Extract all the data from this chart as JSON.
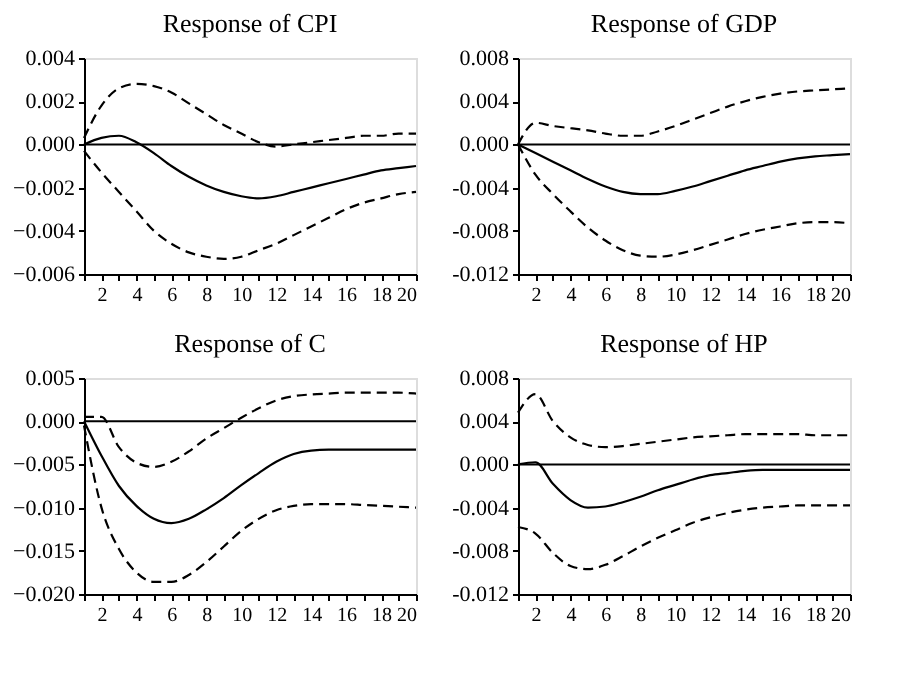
{
  "chart_data": [
    {
      "type": "line",
      "title": "Response of CPI",
      "x": [
        1,
        2,
        3,
        4,
        5,
        6,
        7,
        8,
        9,
        10,
        11,
        12,
        13,
        14,
        15,
        16,
        17,
        18,
        19,
        20
      ],
      "xlim": [
        1,
        20
      ],
      "xticks": [
        {
          "value": 1,
          "label": null
        },
        2,
        {
          "value": 3,
          "label": null
        },
        4,
        {
          "value": 5,
          "label": null
        },
        6,
        {
          "value": 7,
          "label": null
        },
        8,
        {
          "value": 9,
          "label": null
        },
        10,
        {
          "value": 11,
          "label": null
        },
        12,
        {
          "value": 13,
          "label": null
        },
        14,
        {
          "value": 15,
          "label": null
        },
        16,
        {
          "value": 17,
          "label": null
        },
        18,
        {
          "value": 19,
          "label": null
        },
        20
      ],
      "ylim": [
        -0.006,
        0.004
      ],
      "yticks": [
        {
          "value": -0.006,
          "label": "−0.006"
        },
        {
          "value": -0.004,
          "label": "−0.004"
        },
        {
          "value": -0.002,
          "label": "−0.002"
        },
        {
          "value": 0,
          "label": "0.000"
        },
        {
          "value": 0.002,
          "label": "0.002"
        },
        {
          "value": 0.004,
          "label": "0.004"
        }
      ],
      "grid": false,
      "legend": false,
      "ref_lines": [
        {
          "axis": "y",
          "value": 0,
          "color": "#000000",
          "line_style": "solid"
        }
      ],
      "series": [
        {
          "color": "#000000",
          "line_style": "solid",
          "values": [
            0,
            0.0003,
            0.0004,
            0.0001,
            -0.0004,
            -0.001,
            -0.0015,
            -0.0019,
            -0.0022,
            -0.0024,
            -0.0025,
            -0.0024,
            -0.0022,
            -0.002,
            -0.0018,
            -0.0016,
            -0.0014,
            -0.0012,
            -0.0011,
            -0.001
          ]
        },
        {
          "color": "#000000",
          "line_style": "dashed",
          "values": [
            0.0003,
            0.0018,
            0.0026,
            0.0028,
            0.0027,
            0.0024,
            0.0019,
            0.0014,
            0.0009,
            0.0005,
            0.0001,
            -0.0001,
            0,
            0.0001,
            0.0002,
            0.0003,
            0.0004,
            0.0004,
            0.0005,
            0.0005
          ]
        },
        {
          "color": "#000000",
          "line_style": "dashed",
          "values": [
            -0.0003,
            -0.0013,
            -0.0022,
            -0.0031,
            -0.004,
            -0.0046,
            -0.005,
            -0.0052,
            -0.0053,
            -0.0052,
            -0.0049,
            -0.0046,
            -0.0042,
            -0.0038,
            -0.0034,
            -0.003,
            -0.0027,
            -0.0025,
            -0.0023,
            -0.0022
          ]
        }
      ]
    },
    {
      "type": "line",
      "title": "Response of GDP",
      "x": [
        1,
        2,
        3,
        4,
        5,
        6,
        7,
        8,
        9,
        10,
        11,
        12,
        13,
        14,
        15,
        16,
        17,
        18,
        19,
        20
      ],
      "xlim": [
        1,
        20
      ],
      "xticks": [
        {
          "value": 1,
          "label": null
        },
        2,
        {
          "value": 3,
          "label": null
        },
        4,
        {
          "value": 5,
          "label": null
        },
        6,
        {
          "value": 7,
          "label": null
        },
        8,
        {
          "value": 9,
          "label": null
        },
        10,
        {
          "value": 11,
          "label": null
        },
        12,
        {
          "value": 13,
          "label": null
        },
        14,
        {
          "value": 15,
          "label": null
        },
        16,
        {
          "value": 17,
          "label": null
        },
        18,
        {
          "value": 19,
          "label": null
        },
        20
      ],
      "ylim": [
        -0.012,
        0.008
      ],
      "yticks": [
        {
          "value": -0.012,
          "label": "-0.012"
        },
        {
          "value": -0.008,
          "label": "-0.008"
        },
        {
          "value": -0.004,
          "label": "-0.004"
        },
        {
          "value": 0,
          "label": "0.000"
        },
        {
          "value": 0.004,
          "label": "0.004"
        },
        {
          "value": 0.008,
          "label": "0.008"
        }
      ],
      "grid": false,
      "legend": false,
      "ref_lines": [
        {
          "axis": "y",
          "value": 0,
          "color": "#000000",
          "line_style": "solid"
        }
      ],
      "series": [
        {
          "color": "#000000",
          "line_style": "solid",
          "values": [
            0,
            -0.0008,
            -0.0016,
            -0.0024,
            -0.0032,
            -0.0039,
            -0.0044,
            -0.0046,
            -0.0046,
            -0.0043,
            -0.0039,
            -0.0034,
            -0.0029,
            -0.0024,
            -0.002,
            -0.0016,
            -0.0013,
            -0.0011,
            -0.001,
            -0.0009
          ]
        },
        {
          "color": "#000000",
          "line_style": "dashed",
          "values": [
            0,
            0.002,
            0.0017,
            0.0015,
            0.0013,
            0.001,
            0.0008,
            0.0008,
            0.0012,
            0.0017,
            0.0023,
            0.0029,
            0.0035,
            0.004,
            0.0044,
            0.0047,
            0.0049,
            0.005,
            0.0051,
            0.0052
          ]
        },
        {
          "color": "#000000",
          "line_style": "dashed",
          "values": [
            0,
            -0.0028,
            -0.0046,
            -0.0062,
            -0.0077,
            -0.0089,
            -0.0098,
            -0.0103,
            -0.0104,
            -0.0102,
            -0.0098,
            -0.0093,
            -0.0088,
            -0.0083,
            -0.0079,
            -0.0076,
            -0.0073,
            -0.0072,
            -0.0072,
            -0.0073
          ]
        }
      ]
    },
    {
      "type": "line",
      "title": "Response of C",
      "x": [
        1,
        2,
        3,
        4,
        5,
        6,
        7,
        8,
        9,
        10,
        11,
        12,
        13,
        14,
        15,
        16,
        17,
        18,
        19,
        20
      ],
      "xlim": [
        1,
        20
      ],
      "xticks": [
        {
          "value": 1,
          "label": null
        },
        2,
        {
          "value": 3,
          "label": null
        },
        4,
        {
          "value": 5,
          "label": null
        },
        6,
        {
          "value": 7,
          "label": null
        },
        8,
        {
          "value": 9,
          "label": null
        },
        10,
        {
          "value": 11,
          "label": null
        },
        12,
        {
          "value": 13,
          "label": null
        },
        14,
        {
          "value": 15,
          "label": null
        },
        16,
        {
          "value": 17,
          "label": null
        },
        18,
        {
          "value": 19,
          "label": null
        },
        20
      ],
      "ylim": [
        -0.02,
        0.005
      ],
      "yticks": [
        {
          "value": -0.02,
          "label": "−0.020"
        },
        {
          "value": -0.015,
          "label": "−0.015"
        },
        {
          "value": -0.01,
          "label": "−0.010"
        },
        {
          "value": -0.005,
          "label": "−0.005"
        },
        {
          "value": 0,
          "label": "0.000"
        },
        {
          "value": 0.005,
          "label": "0.005"
        }
      ],
      "grid": false,
      "legend": false,
      "ref_lines": [
        {
          "axis": "y",
          "value": 0,
          "color": "#000000",
          "line_style": "solid"
        }
      ],
      "series": [
        {
          "color": "#000000",
          "line_style": "solid",
          "values": [
            0,
            -0.004,
            -0.0075,
            -0.0098,
            -0.0113,
            -0.0118,
            -0.0113,
            -0.0102,
            -0.0089,
            -0.0074,
            -0.006,
            -0.0047,
            -0.0038,
            -0.0034,
            -0.0033,
            -0.0033,
            -0.0033,
            -0.0033,
            -0.0033,
            -0.0033
          ]
        },
        {
          "color": "#000000",
          "line_style": "dashed",
          "values": [
            0.0005,
            0.0005,
            -0.003,
            -0.0048,
            -0.0053,
            -0.0047,
            -0.0035,
            -0.002,
            -0.0008,
            0.0004,
            0.0015,
            0.0024,
            0.0029,
            0.0031,
            0.0032,
            0.0033,
            0.0033,
            0.0033,
            0.0033,
            0.0032
          ]
        },
        {
          "color": "#000000",
          "line_style": "dashed",
          "values": [
            -0.0005,
            -0.01,
            -0.0148,
            -0.0175,
            -0.0186,
            -0.0186,
            -0.0178,
            -0.0163,
            -0.0145,
            -0.0127,
            -0.0113,
            -0.0103,
            -0.0098,
            -0.0096,
            -0.0096,
            -0.0096,
            -0.0097,
            -0.0098,
            -0.0099,
            -0.01
          ]
        }
      ]
    },
    {
      "type": "line",
      "title": "Response of HP",
      "x": [
        1,
        2,
        3,
        4,
        5,
        6,
        7,
        8,
        9,
        10,
        11,
        12,
        13,
        14,
        15,
        16,
        17,
        18,
        19,
        20
      ],
      "xlim": [
        1,
        20
      ],
      "xticks": [
        {
          "value": 1,
          "label": null
        },
        2,
        {
          "value": 3,
          "label": null
        },
        4,
        {
          "value": 5,
          "label": null
        },
        6,
        {
          "value": 7,
          "label": null
        },
        8,
        {
          "value": 9,
          "label": null
        },
        10,
        {
          "value": 11,
          "label": null
        },
        12,
        {
          "value": 13,
          "label": null
        },
        14,
        {
          "value": 15,
          "label": null
        },
        16,
        {
          "value": 17,
          "label": null
        },
        18,
        {
          "value": 19,
          "label": null
        },
        20
      ],
      "ylim": [
        -0.012,
        0.008
      ],
      "yticks": [
        {
          "value": -0.012,
          "label": "-0.012"
        },
        {
          "value": -0.008,
          "label": "-0.008"
        },
        {
          "value": -0.004,
          "label": "-0.004"
        },
        {
          "value": 0,
          "label": "0.000"
        },
        {
          "value": 0.004,
          "label": "0.004"
        },
        {
          "value": 0.008,
          "label": "0.008"
        }
      ],
      "grid": false,
      "legend": false,
      "ref_lines": [
        {
          "axis": "y",
          "value": 0,
          "color": "#000000",
          "line_style": "solid"
        }
      ],
      "series": [
        {
          "color": "#000000",
          "line_style": "solid",
          "values": [
            0,
            0.0002,
            -0.0018,
            -0.0033,
            -0.004,
            -0.0039,
            -0.0035,
            -0.003,
            -0.0024,
            -0.0019,
            -0.0014,
            -0.001,
            -0.0008,
            -0.0006,
            -0.0005,
            -0.0005,
            -0.0005,
            -0.0005,
            -0.0005,
            -0.0005
          ]
        },
        {
          "color": "#000000",
          "line_style": "dashed",
          "values": [
            0.0048,
            0.0065,
            0.004,
            0.0025,
            0.0018,
            0.0016,
            0.0017,
            0.0019,
            0.0021,
            0.0023,
            0.0025,
            0.0026,
            0.0027,
            0.0028,
            0.0028,
            0.0028,
            0.0028,
            0.0027,
            0.0027,
            0.0027
          ]
        },
        {
          "color": "#000000",
          "line_style": "dashed",
          "values": [
            -0.0058,
            -0.0064,
            -0.0082,
            -0.0094,
            -0.0097,
            -0.0093,
            -0.0085,
            -0.0076,
            -0.0068,
            -0.0061,
            -0.0054,
            -0.0049,
            -0.0045,
            -0.0042,
            -0.004,
            -0.0039,
            -0.0038,
            -0.0038,
            -0.0038,
            -0.0038
          ]
        }
      ]
    }
  ]
}
